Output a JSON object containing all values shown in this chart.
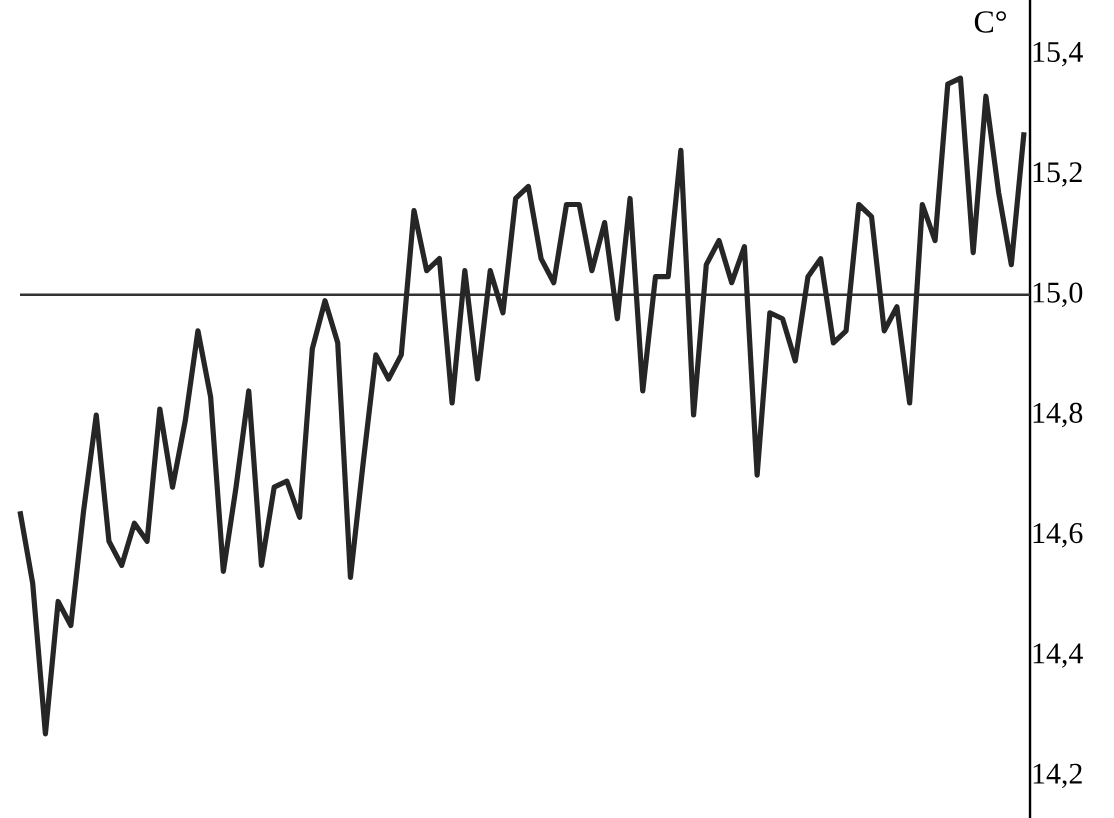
{
  "chart_data": {
    "type": "line",
    "ylabel": "C°",
    "categories": [
      null,
      null,
      null,
      null,
      null,
      null,
      null,
      null,
      null,
      null,
      null,
      null,
      null,
      null,
      null,
      null,
      null,
      null,
      null,
      null,
      null,
      null,
      null,
      null,
      null,
      null,
      null,
      null,
      null,
      null,
      null,
      null,
      null,
      null,
      null,
      null,
      null,
      null,
      null,
      null,
      null,
      null,
      null,
      null,
      null,
      null,
      null,
      null,
      null,
      null,
      null,
      null,
      null,
      null,
      null,
      null,
      null,
      null,
      null,
      null,
      null,
      null,
      null,
      null,
      null,
      null,
      null,
      null,
      null,
      null,
      null,
      null,
      null,
      null,
      null,
      null,
      null,
      null,
      null,
      null
    ],
    "series": [
      {
        "color": "#262626",
        "values": [
          14.64,
          14.52,
          14.27,
          14.49,
          14.45,
          14.64,
          14.8,
          14.59,
          14.55,
          14.62,
          14.59,
          14.81,
          14.68,
          14.79,
          14.94,
          14.83,
          14.54,
          14.68,
          14.84,
          14.55,
          14.68,
          14.69,
          14.63,
          14.91,
          14.99,
          14.92,
          14.53,
          14.72,
          14.9,
          14.86,
          14.9,
          15.14,
          15.04,
          15.06,
          14.82,
          15.04,
          14.86,
          15.04,
          14.97,
          15.16,
          15.18,
          15.06,
          15.02,
          15.15,
          15.15,
          15.04,
          15.12,
          14.96,
          15.16,
          14.84,
          15.03,
          15.03,
          15.24,
          14.8,
          15.05,
          15.09,
          15.02,
          15.08,
          14.7,
          14.97,
          14.96,
          14.89,
          15.03,
          15.06,
          14.92,
          14.94,
          15.15,
          15.13,
          14.94,
          14.98,
          14.82,
          15.15,
          15.09,
          15.35,
          15.36,
          15.07,
          15.33,
          15.17,
          15.05,
          15.27
        ]
      }
    ],
    "ylim": [
      14.13,
      15.49
    ],
    "yticks": [
      {
        "value": 14.2,
        "label": "14,2"
      },
      {
        "value": 14.4,
        "label": "14,4"
      },
      {
        "value": 14.6,
        "label": "14,6"
      },
      {
        "value": 14.8,
        "label": "14,8"
      },
      {
        "value": 15.0,
        "label": "15,0"
      },
      {
        "value": 15.2,
        "label": "15,2"
      },
      {
        "value": 15.4,
        "label": "15,4"
      }
    ],
    "ref_lines": [
      {
        "axis": "y",
        "value": 15.0,
        "color": "#333333",
        "line_style": "solid"
      }
    ],
    "marker": "none",
    "line_style": "solid",
    "tick_labels": "y"
  }
}
